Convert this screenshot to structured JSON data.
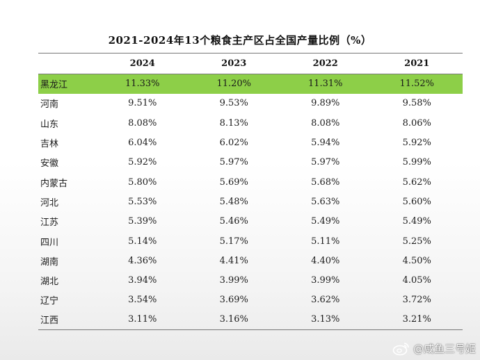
{
  "chart_data": {
    "type": "table",
    "title": "2021-2024年13个粮食主产区占全国产量比例（%）",
    "columns": [
      "",
      "2024",
      "2023",
      "2022",
      "2021"
    ],
    "rows": [
      {
        "region": "黑龙江",
        "values": [
          "11.33%",
          "11.20%",
          "11.31%",
          "11.52%"
        ],
        "highlight": true
      },
      {
        "region": "河南",
        "values": [
          "9.51%",
          "9.53%",
          "9.89%",
          "9.58%"
        ]
      },
      {
        "region": "山东",
        "values": [
          "8.08%",
          "8.13%",
          "8.08%",
          "8.06%"
        ]
      },
      {
        "region": "吉林",
        "values": [
          "6.04%",
          "6.02%",
          "5.94%",
          "5.92%"
        ]
      },
      {
        "region": "安徽",
        "values": [
          "5.92%",
          "5.97%",
          "5.97%",
          "5.99%"
        ]
      },
      {
        "region": "内蒙古",
        "values": [
          "5.80%",
          "5.69%",
          "5.68%",
          "5.62%"
        ]
      },
      {
        "region": "河北",
        "values": [
          "5.53%",
          "5.48%",
          "5.63%",
          "5.60%"
        ]
      },
      {
        "region": "江苏",
        "values": [
          "5.39%",
          "5.46%",
          "5.49%",
          "5.49%"
        ]
      },
      {
        "region": "四川",
        "values": [
          "5.14%",
          "5.17%",
          "5.11%",
          "5.25%"
        ]
      },
      {
        "region": "湖南",
        "values": [
          "4.36%",
          "4.41%",
          "4.40%",
          "4.50%"
        ]
      },
      {
        "region": "湖北",
        "values": [
          "3.94%",
          "3.99%",
          "3.99%",
          "4.05%"
        ]
      },
      {
        "region": "辽宁",
        "values": [
          "3.54%",
          "3.69%",
          "3.62%",
          "3.72%"
        ]
      },
      {
        "region": "江西",
        "values": [
          "3.11%",
          "3.16%",
          "3.13%",
          "3.21%"
        ]
      }
    ],
    "highlight_color": "#8dcf48"
  },
  "watermark": {
    "text": "@咸鱼三号姬",
    "icon": "weibo-icon"
  }
}
